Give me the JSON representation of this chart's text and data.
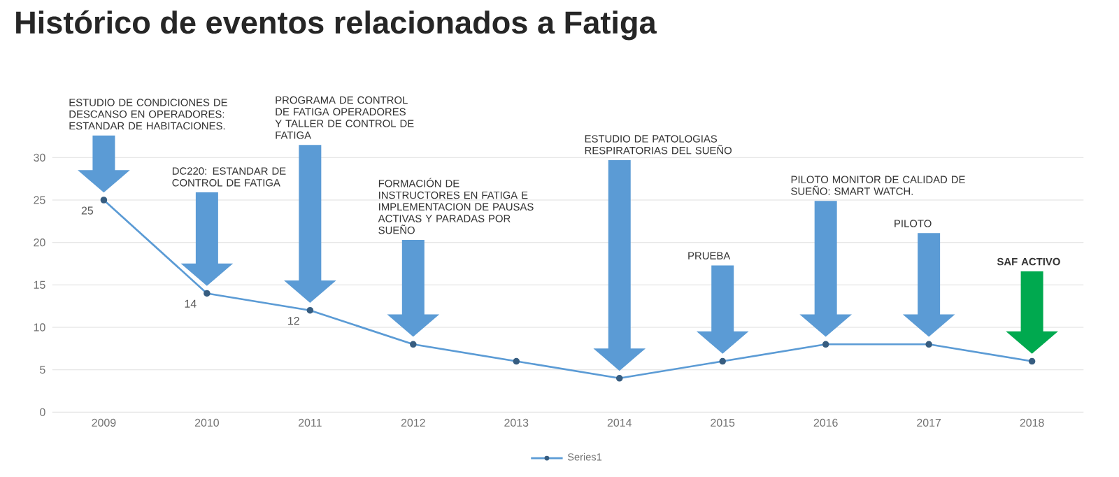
{
  "chart_data": {
    "type": "line",
    "title": "Histórico de eventos relacionados a Fatiga",
    "categories": [
      "2009",
      "2010",
      "2011",
      "2012",
      "2013",
      "2014",
      "2015",
      "2016",
      "2017",
      "2018"
    ],
    "series": [
      {
        "name": "Series1",
        "color": "#5b9bd5",
        "values": [
          25,
          14,
          12,
          8,
          6,
          4,
          6,
          8,
          8,
          6
        ],
        "value_labels": [
          "25",
          "14",
          "12",
          null,
          null,
          null,
          null,
          null,
          null,
          null
        ]
      }
    ],
    "ylim": [
      0,
      30
    ],
    "yticks": [
      0,
      5,
      10,
      15,
      20,
      25,
      30
    ],
    "grid": "y",
    "legend": "bottom",
    "marker": "circle",
    "line_style": "solid",
    "annotations": [
      "ESTUDIO DE CONDICIONES DE DESCANSO EN OPERADORES: ESTANDAR DE HABITACIONES.",
      "DC220: ESTANDAR DE CONTROL DE FATIGA",
      "PROGRAMA DE CONTROL DE FATIGA OPERADORES Y TALLER DE CONTROL DE FATIGA",
      "FORMACIÓN DE INSTRUCTORES EN FATIGA E IMPLEMENTACION DE PAUSAS ACTIVAS Y PARADAS POR SUEÑO",
      "ESTUDIO DE PATOLOGIAS RESPIRATORIAS DEL SUEÑO",
      "PRUEBA",
      "PILOTO MONITOR DE CALIDAD DE SUEÑO: SMART WATCH.",
      "PILOTO",
      "**SAF ACTIVO**"
    ]
  }
}
